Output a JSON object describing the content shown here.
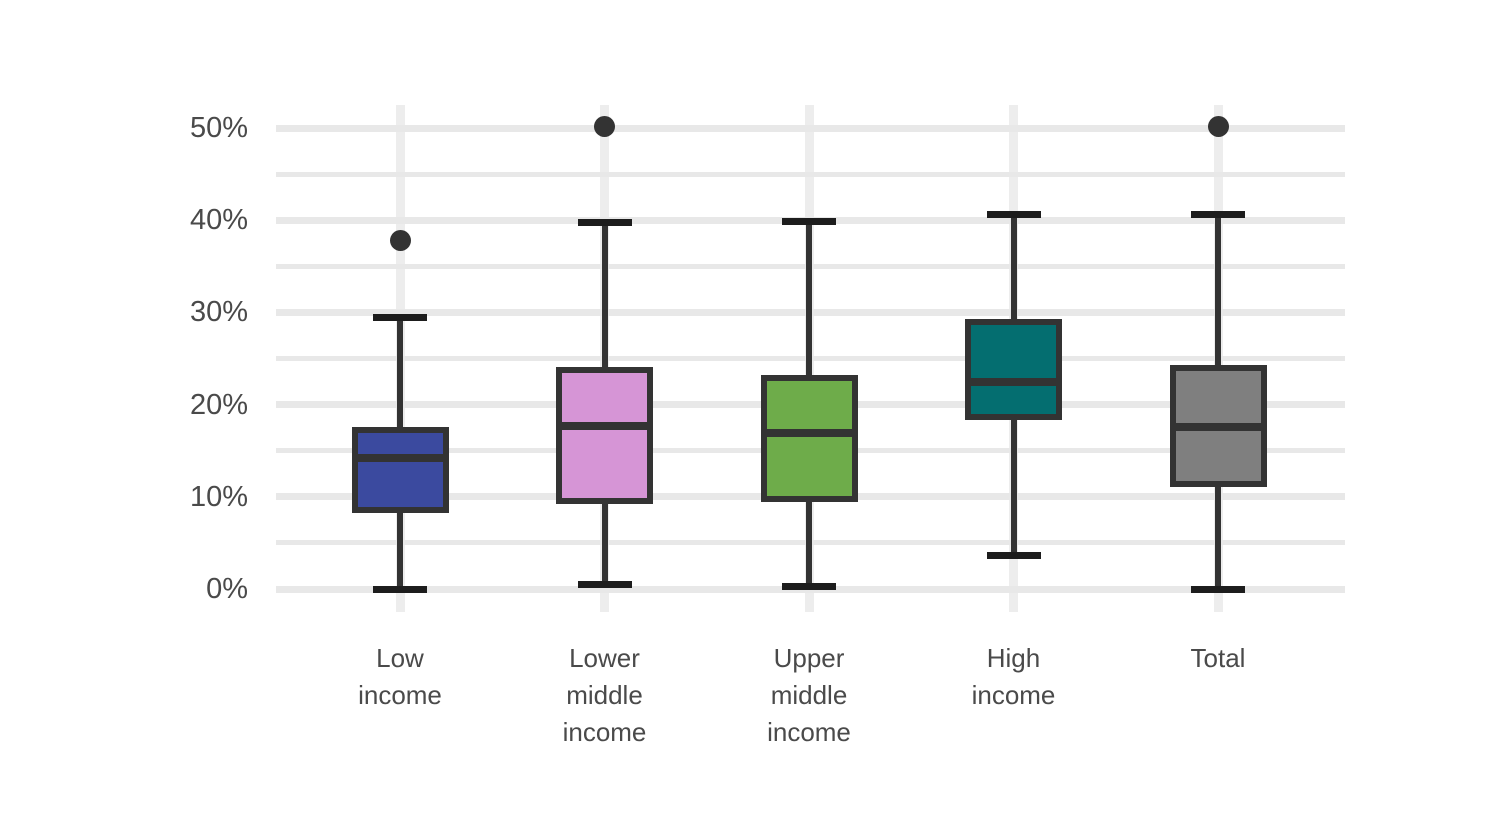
{
  "chart_data": {
    "type": "boxplot",
    "title": "",
    "xlabel": "",
    "ylabel": "",
    "unit": "%",
    "ylim": [
      0,
      52.5
    ],
    "y_tick_values": [
      0,
      10,
      20,
      30,
      40,
      50
    ],
    "y_tick_labels": [
      "0%",
      "10%",
      "20%",
      "30%",
      "40%",
      "50%"
    ],
    "minor_grid_step": 5,
    "grid": "horizontal major+minor light gray, vertical band per category",
    "legend": "none",
    "categories": [
      "Low income",
      "Lower middle income",
      "Upper middle income",
      "High income",
      "Total"
    ],
    "series": [
      {
        "name": "Low income",
        "label_lines": [
          "Low",
          "income"
        ],
        "color": "#3b4a9f",
        "whisker_low": 0.0,
        "q1": 8.6,
        "median": 14.2,
        "q3": 17.2,
        "whisker_high": 29.5,
        "outliers": [
          37.8
        ]
      },
      {
        "name": "Lower middle income",
        "label_lines": [
          "Lower",
          "middle",
          "income"
        ],
        "color": "#d695d6",
        "whisker_low": 0.5,
        "q1": 9.5,
        "median": 17.7,
        "q3": 23.8,
        "whisker_high": 39.7,
        "outliers": [
          50.2
        ]
      },
      {
        "name": "Upper middle income",
        "label_lines": [
          "Upper",
          "middle",
          "income"
        ],
        "color": "#6eac4a",
        "whisker_low": 0.3,
        "q1": 9.8,
        "median": 16.9,
        "q3": 22.9,
        "whisker_high": 39.9,
        "outliers": []
      },
      {
        "name": "High income",
        "label_lines": [
          "High",
          "income"
        ],
        "color": "#046e70",
        "whisker_low": 3.6,
        "q1": 18.7,
        "median": 22.5,
        "q3": 29.0,
        "whisker_high": 40.6,
        "outliers": []
      },
      {
        "name": "Total",
        "label_lines": [
          "Total"
        ],
        "color": "#7f7f7f",
        "whisker_low": 0.0,
        "q1": 11.4,
        "median": 17.6,
        "q3": 24.0,
        "whisker_high": 40.6,
        "outliers": [
          50.2
        ]
      }
    ]
  },
  "colors": {
    "stroke": "#333333",
    "outlier": "#333333",
    "grid_horizontal": "#e8e8e8",
    "grid_vertical": "#ededed",
    "tick_text": "#4a4a4a",
    "background": "#ffffff"
  }
}
